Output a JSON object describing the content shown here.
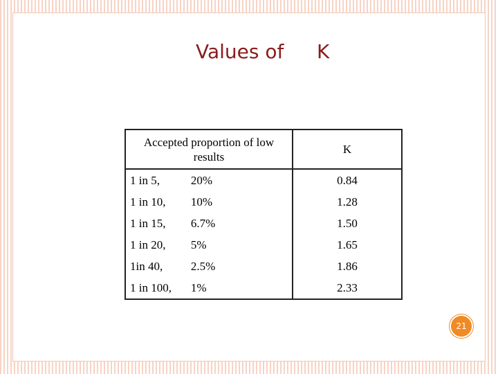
{
  "header": {
    "title": [
      "Values of",
      "K"
    ]
  },
  "table": {
    "header": [
      "Accepted proportion of low results",
      "K"
    ],
    "rows": [
      [
        "1 in 5,",
        "20%",
        "0.84"
      ],
      [
        "1 in 10,",
        "10%",
        "1.28"
      ],
      [
        "1 in 15,",
        "6.7%",
        "1.50"
      ],
      [
        "1 in 20,",
        "5%",
        "1.65"
      ],
      [
        "1in 40,",
        "2.5%",
        "1.86"
      ],
      [
        "1 in 100,",
        "1%",
        "2.33"
      ]
    ]
  },
  "page_number": "21"
}
